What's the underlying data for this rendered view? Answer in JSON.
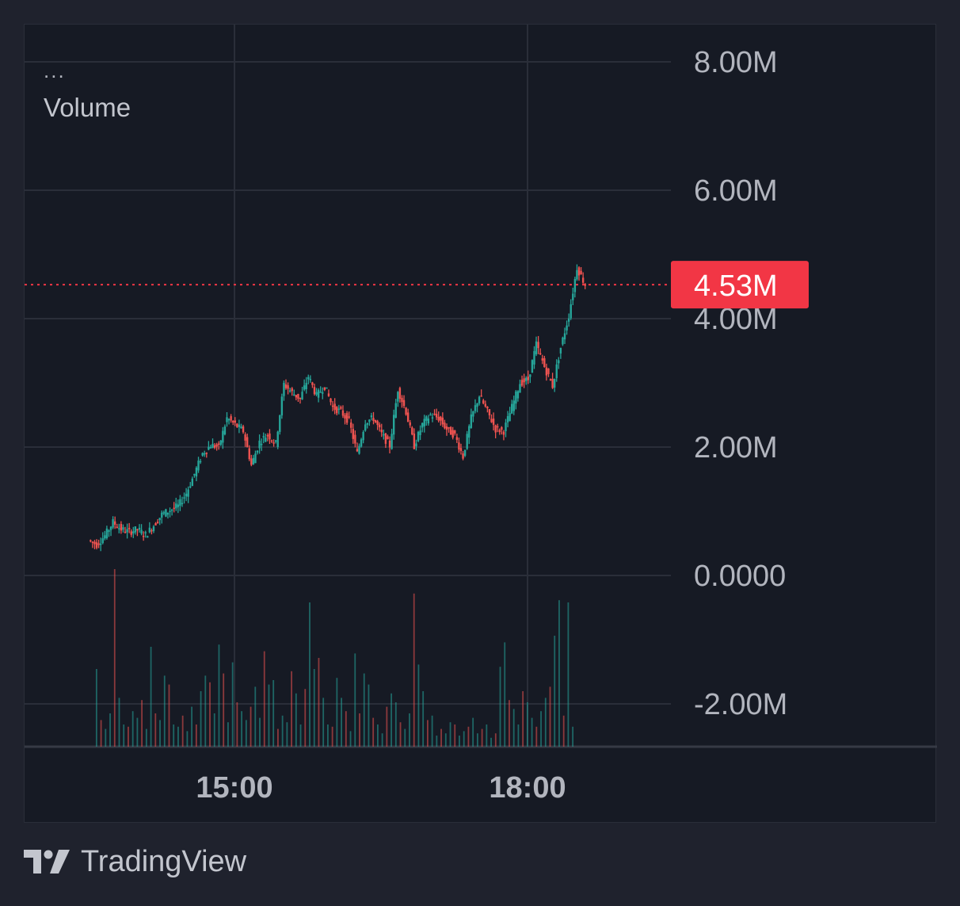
{
  "header": {
    "menu": "...",
    "indicator": "Volume"
  },
  "brand": {
    "name": "TradingView",
    "icon": "tradingview-logo-icon"
  },
  "colors": {
    "background": "#1f222d",
    "panel": "#161a24",
    "grid": "#2a2e39",
    "up": "#26a69a",
    "down": "#ef5350",
    "price_label_bg": "#f23645",
    "axis_text": "#b2b5be"
  },
  "chart_data": {
    "type": "candlestick",
    "symbol": "",
    "y_axis": {
      "ticks": [
        "8.00M",
        "6.00M",
        "4.00M",
        "2.00M",
        "0.0000",
        "-2.00M"
      ],
      "tick_values": [
        8000000,
        6000000,
        4000000,
        2000000,
        0,
        -2000000
      ],
      "range": [
        -2680000,
        8600000
      ]
    },
    "x_axis": {
      "ticks": [
        "15:00",
        "18:00"
      ],
      "range": [
        "12:50",
        "19:30"
      ]
    },
    "last_price": {
      "label": "4.53M",
      "value": 4530000
    },
    "price_path": [
      [
        "13:31",
        0.55
      ],
      [
        "13:36",
        0.48
      ],
      [
        "13:41",
        0.62
      ],
      [
        "13:46",
        0.83
      ],
      [
        "13:51",
        0.72
      ],
      [
        "13:56",
        0.68
      ],
      [
        "14:01",
        0.72
      ],
      [
        "14:06",
        0.63
      ],
      [
        "14:11",
        0.78
      ],
      [
        "14:16",
        0.95
      ],
      [
        "14:21",
        1.02
      ],
      [
        "14:26",
        1.08
      ],
      [
        "14:31",
        1.28
      ],
      [
        "14:36",
        1.58
      ],
      [
        "14:41",
        1.9
      ],
      [
        "14:46",
        2.03
      ],
      [
        "14:51",
        2.0
      ],
      [
        "14:56",
        2.45
      ],
      [
        "15:01",
        2.35
      ],
      [
        "15:06",
        2.25
      ],
      [
        "15:11",
        1.72
      ],
      [
        "15:16",
        2.08
      ],
      [
        "15:21",
        2.2
      ],
      [
        "15:26",
        2.05
      ],
      [
        "15:31",
        2.98
      ],
      [
        "15:36",
        2.85
      ],
      [
        "15:41",
        2.75
      ],
      [
        "15:46",
        3.1
      ],
      [
        "15:51",
        2.8
      ],
      [
        "15:56",
        2.95
      ],
      [
        "16:01",
        2.62
      ],
      [
        "16:06",
        2.55
      ],
      [
        "16:11",
        2.4
      ],
      [
        "16:16",
        1.9
      ],
      [
        "16:21",
        2.4
      ],
      [
        "16:26",
        2.45
      ],
      [
        "16:31",
        2.2
      ],
      [
        "16:36",
        2.02
      ],
      [
        "16:41",
        2.9
      ],
      [
        "16:46",
        2.55
      ],
      [
        "16:51",
        2.02
      ],
      [
        "16:56",
        2.35
      ],
      [
        "17:01",
        2.5
      ],
      [
        "17:06",
        2.45
      ],
      [
        "17:11",
        2.28
      ],
      [
        "17:16",
        2.18
      ],
      [
        "17:21",
        1.85
      ],
      [
        "17:26",
        2.45
      ],
      [
        "17:31",
        2.8
      ],
      [
        "17:36",
        2.55
      ],
      [
        "17:41",
        2.28
      ],
      [
        "17:46",
        2.25
      ],
      [
        "17:51",
        2.62
      ],
      [
        "17:56",
        3.0
      ],
      [
        "18:01",
        3.05
      ],
      [
        "18:06",
        3.6
      ],
      [
        "18:11",
        3.25
      ],
      [
        "18:16",
        2.95
      ],
      [
        "18:21",
        3.55
      ],
      [
        "18:26",
        4.05
      ],
      [
        "18:31",
        4.8
      ],
      [
        "18:36",
        4.53
      ]
    ],
    "volume": {
      "note": "Volume bars at bottom, max ~",
      "bars": [
        3.5,
        1.2,
        0.8,
        1.5,
        8.0,
        2.2,
        1.0,
        0.9,
        1.6,
        1.3,
        2.1,
        0.8,
        4.5,
        1.5,
        1.2,
        3.2,
        2.8,
        1.0,
        0.9,
        1.4,
        0.7,
        1.8,
        1.0,
        2.5,
        3.2,
        2.9,
        1.5,
        4.6,
        3.3,
        1.1,
        3.8,
        2.0,
        1.6,
        1.2,
        1.8,
        2.7,
        1.3,
        4.3,
        2.8,
        3.0,
        0.8,
        1.4,
        1.1,
        3.4,
        2.4,
        1.0,
        2.6,
        6.5,
        3.5,
        4.0,
        2.2,
        1.0,
        0.9,
        3.1,
        2.2,
        1.6,
        0.7,
        4.2,
        1.5,
        3.3,
        2.8,
        1.3,
        1.0,
        0.6,
        1.8,
        2.4,
        2.0,
        1.1,
        0.8,
        1.5,
        6.9,
        3.7,
        2.5,
        1.2,
        1.4,
        0.5,
        0.8,
        0.6,
        1.1,
        1.0,
        0.5,
        0.7,
        0.9,
        1.3,
        0.6,
        0.8,
        1.0,
        0.4,
        0.6,
        3.6,
        4.7,
        2.1,
        1.7,
        1.0,
        2.5,
        2.0,
        1.3,
        0.9,
        1.6,
        2.2,
        2.7,
        5.0,
        6.6,
        1.4,
        6.5,
        0.9
      ]
    }
  }
}
